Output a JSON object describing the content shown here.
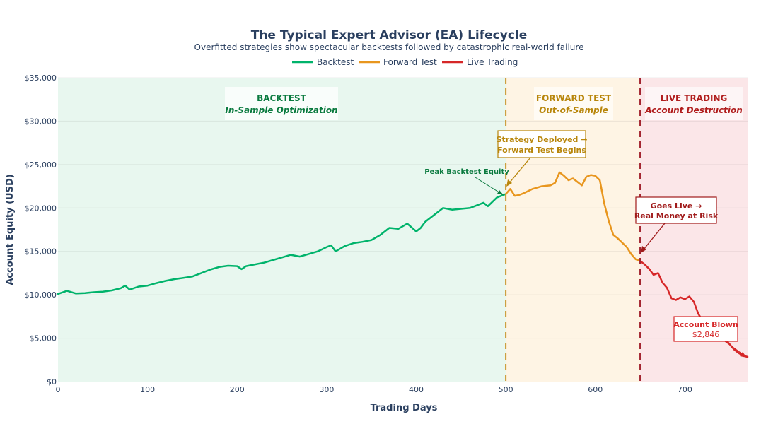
{
  "chart_data": {
    "type": "line",
    "title": "The Typical Expert Advisor (EA) Lifecycle",
    "subtitle": "Overfitted strategies show spectacular backtests followed by catastrophic real-world failure",
    "xlabel": "Trading Days",
    "ylabel": "Account Equity (USD)",
    "xlim": [
      0,
      770
    ],
    "ylim": [
      0,
      35000
    ],
    "x_ticks": [
      0,
      100,
      200,
      300,
      400,
      500,
      600,
      700
    ],
    "y_ticks": [
      0,
      5000,
      10000,
      15000,
      20000,
      25000,
      30000,
      35000
    ],
    "y_tick_labels": [
      "$0",
      "$5,000",
      "$10,000",
      "$15,000",
      "$20,000",
      "$25,000",
      "$30,000",
      "$35,000"
    ],
    "grid": true,
    "legend_position": "top-center",
    "legend": [
      {
        "name": "Backtest",
        "color": "#00b36b"
      },
      {
        "name": "Forward Test",
        "color": "#e8961e"
      },
      {
        "name": "Live Trading",
        "color": "#d62728"
      }
    ],
    "phases": [
      {
        "name": "backtest",
        "x_range": [
          0,
          500
        ],
        "fill": "#e8f7ef",
        "title": "BACKTEST",
        "subtitle": "In-Sample Optimization",
        "color": "#0a7a3f"
      },
      {
        "name": "forward",
        "x_range": [
          500,
          650
        ],
        "fill": "#fef4e4",
        "title": "FORWARD TEST",
        "subtitle": "Out-of-Sample",
        "color": "#b8860b"
      },
      {
        "name": "live",
        "x_range": [
          650,
          770
        ],
        "fill": "#fbe6e8",
        "title": "LIVE TRADING",
        "subtitle": "Account Destruction",
        "color": "#b01c1c"
      }
    ],
    "vlines": [
      {
        "x": 500,
        "color": "#c9952b"
      },
      {
        "x": 650,
        "color": "#a32530"
      }
    ],
    "series": [
      {
        "name": "Backtest",
        "color": "#00b36b",
        "x": [
          0,
          10,
          20,
          30,
          40,
          50,
          60,
          70,
          75,
          80,
          90,
          100,
          110,
          120,
          130,
          140,
          150,
          160,
          170,
          180,
          190,
          200,
          205,
          210,
          220,
          230,
          240,
          250,
          260,
          270,
          280,
          290,
          300,
          305,
          310,
          320,
          330,
          340,
          350,
          360,
          370,
          380,
          390,
          400,
          405,
          410,
          420,
          430,
          440,
          450,
          460,
          470,
          475,
          480,
          490,
          500
        ],
        "y": [
          10100,
          10450,
          10150,
          10200,
          10300,
          10350,
          10500,
          10750,
          11050,
          10600,
          10950,
          11050,
          11350,
          11600,
          11800,
          11950,
          12100,
          12500,
          12900,
          13200,
          13350,
          13300,
          12950,
          13300,
          13500,
          13700,
          14000,
          14300,
          14600,
          14400,
          14700,
          15000,
          15500,
          15700,
          15000,
          15600,
          15950,
          16100,
          16300,
          16900,
          17700,
          17600,
          18200,
          17300,
          17700,
          18400,
          19200,
          20000,
          19800,
          19900,
          20000,
          20400,
          20600,
          20200,
          21200,
          21600
        ]
      },
      {
        "name": "Forward Test",
        "color": "#e8961e",
        "x": [
          500,
          505,
          510,
          515,
          520,
          530,
          540,
          550,
          555,
          560,
          565,
          570,
          575,
          580,
          585,
          590,
          595,
          600,
          605,
          610,
          615,
          620,
          625,
          630,
          635,
          640,
          645,
          650
        ],
        "y": [
          21600,
          22200,
          21400,
          21500,
          21700,
          22200,
          22500,
          22600,
          22900,
          24100,
          23700,
          23200,
          23400,
          23000,
          22600,
          23600,
          23800,
          23700,
          23200,
          20500,
          18500,
          16900,
          16500,
          16000,
          15500,
          14700,
          14100,
          13900
        ]
      },
      {
        "name": "Live Trading",
        "color": "#d62728",
        "x": [
          650,
          655,
          660,
          665,
          670,
          675,
          680,
          685,
          690,
          695,
          700,
          705,
          710,
          715,
          720,
          725,
          730,
          735,
          740,
          745,
          750,
          755,
          760,
          765,
          770
        ],
        "y": [
          13900,
          13500,
          13000,
          12300,
          12500,
          11400,
          10800,
          9600,
          9400,
          9700,
          9500,
          9800,
          9200,
          7800,
          7000,
          6800,
          6500,
          6200,
          5500,
          4900,
          4300,
          3700,
          3300,
          3000,
          2846
        ]
      }
    ],
    "annotations": [
      {
        "id": "peak",
        "text": "Peak Backtest Equity",
        "x": 495,
        "y": 21500,
        "color": "#0a7a3f"
      },
      {
        "id": "deployed",
        "lines": [
          "Strategy Deployed →",
          "Forward Test Begins"
        ],
        "x": 500,
        "y": 22300,
        "color": "#b8860b"
      },
      {
        "id": "live",
        "lines": [
          "Goes Live →",
          "Real Money at Risk"
        ],
        "x": 650,
        "y": 14500,
        "color": "#a01a1a"
      },
      {
        "id": "blown",
        "lines": [
          "Account Blown",
          "$2,846"
        ],
        "x": 770,
        "y": 2846,
        "color": "#d62728"
      }
    ]
  }
}
